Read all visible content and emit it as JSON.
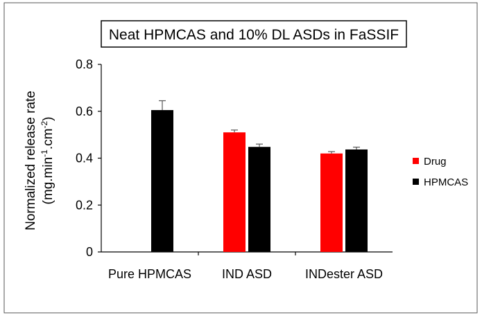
{
  "chart_data": {
    "type": "bar",
    "title": "Neat HPMCAS and 10% DL ASDs in FaSSIF",
    "ylabel_line1": "Normalized release rate",
    "ylabel_line2": {
      "base1": "(mg.min",
      "sup1": "-1",
      "base2": ".cm",
      "sup2": "-2",
      "base3": ")"
    },
    "categories": [
      "Pure HPMCAS",
      "IND ASD",
      "INDester ASD"
    ],
    "series": [
      {
        "name": "Drug",
        "color": "#ff0000",
        "values": [
          null,
          0.51,
          0.42
        ],
        "errors": [
          null,
          0.01,
          0.008
        ]
      },
      {
        "name": "HPMCAS",
        "color": "#000000",
        "values": [
          0.605,
          0.448,
          0.437
        ],
        "errors": [
          0.04,
          0.012,
          0.01
        ]
      }
    ],
    "ylim": [
      0,
      0.8
    ],
    "yticks": [
      "0",
      "0.2",
      "0.4",
      "0.6",
      "0.8"
    ],
    "ytick_values": [
      0,
      0.2,
      0.4,
      0.6,
      0.8
    ],
    "grid": false,
    "legend_position": "right"
  }
}
